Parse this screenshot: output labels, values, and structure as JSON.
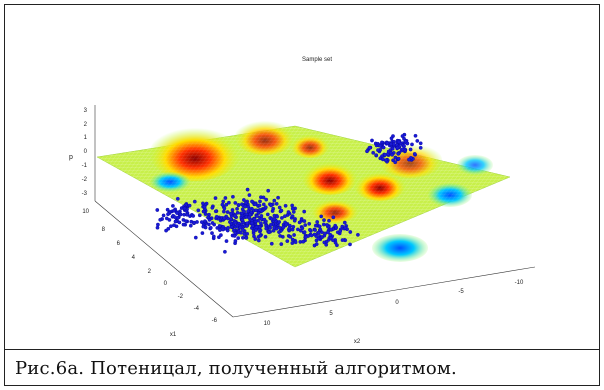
{
  "figure": {
    "title": "Sample set",
    "caption": "Рис.6а. Потеницал, полученный алгоритмом."
  },
  "chart_data": {
    "type": "scatter",
    "plot_kind": "3d mesh surface with overlaid scatter points",
    "title": "Sample set",
    "zlabel": "p",
    "xlabel": "x2",
    "ylabel": "x1",
    "z_ticks": [
      "3",
      "2",
      "1",
      "0",
      "-1",
      "-2",
      "-3"
    ],
    "y_ticks": [
      "10",
      "8",
      "6",
      "4",
      "2",
      "0",
      "-2",
      "-4",
      "-6"
    ],
    "x_ticks": [
      "10",
      "5",
      "0",
      "-5",
      "-10"
    ],
    "zlim": [
      -3,
      3
    ],
    "ylim": [
      -6,
      10
    ],
    "xlim": [
      -10,
      10
    ],
    "colormap": "jet",
    "point_color": "#1a1ad6",
    "surface_colors": [
      "#0000ff",
      "#00c8ff",
      "#b4ff50",
      "#ffdc00",
      "#ff3000",
      "#8b0000"
    ],
    "grid": false
  }
}
